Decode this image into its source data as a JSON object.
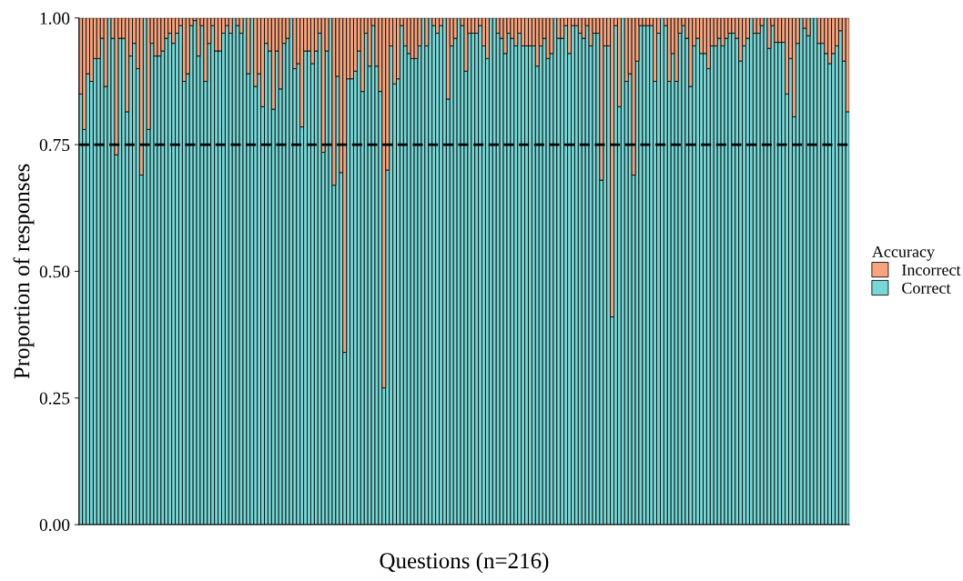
{
  "chart_data": {
    "type": "bar",
    "stacked": true,
    "xlabel": "Questions (n=216)",
    "ylabel": "Proportion of responses",
    "legend_title": "Accuracy",
    "legend": "right",
    "grid": false,
    "tick_labels": "y",
    "categories": [
      null,
      null,
      null,
      null,
      null,
      null,
      null,
      null,
      null,
      null,
      null,
      null,
      null,
      null,
      null,
      null,
      null,
      null,
      null,
      null,
      null,
      null,
      null,
      null,
      null,
      null,
      null,
      null,
      null,
      null,
      null,
      null,
      null,
      null,
      null,
      null,
      null,
      null,
      null,
      null,
      null,
      null,
      null,
      null,
      null,
      null,
      null,
      null,
      null,
      null,
      null,
      null,
      null,
      null,
      null,
      null,
      null,
      null,
      null,
      null,
      null,
      null,
      null,
      null,
      null,
      null,
      null,
      null,
      null,
      null,
      null,
      null,
      null,
      null,
      null,
      null,
      null,
      null,
      null,
      null,
      null,
      null,
      null,
      null,
      null,
      null,
      null,
      null,
      null,
      null,
      null,
      null,
      null,
      null,
      null,
      null,
      null,
      null,
      null,
      null,
      null,
      null,
      null,
      null,
      null,
      null,
      null,
      null,
      null,
      null,
      null,
      null,
      null,
      null,
      null,
      null,
      null,
      null,
      null,
      null,
      null,
      null,
      null,
      null,
      null,
      null,
      null,
      null,
      null,
      null,
      null,
      null,
      null,
      null,
      null,
      null,
      null,
      null,
      null,
      null,
      null,
      null,
      null,
      null,
      null,
      null,
      null,
      null,
      null,
      null,
      null,
      null,
      null,
      null,
      null,
      null,
      null,
      null,
      null,
      null,
      null,
      null,
      null,
      null,
      null,
      null,
      null,
      null,
      null,
      null,
      null,
      null,
      null,
      null,
      null,
      null,
      null,
      null,
      null,
      null,
      null,
      null,
      null,
      null,
      null,
      null,
      null,
      null,
      null,
      null,
      null,
      null,
      null,
      null,
      null,
      null,
      null,
      null,
      null,
      null,
      null,
      null,
      null,
      null,
      null,
      null,
      null,
      null,
      null,
      null,
      null,
      null,
      null,
      null,
      null,
      null
    ],
    "ylim": [
      0,
      1
    ],
    "yticks": [
      {
        "value": 0,
        "label": "0.00"
      },
      {
        "value": 0.25,
        "label": "0.25"
      },
      {
        "value": 0.5,
        "label": "0.50"
      },
      {
        "value": 0.75,
        "label": "0.75"
      },
      {
        "value": 1,
        "label": "1.00"
      }
    ],
    "ref_lines": [
      {
        "axis": "y",
        "value": 0.75,
        "color": "#000000",
        "line_style": "dashed"
      }
    ],
    "series": [
      {
        "name": "Correct",
        "color": "#76d7d6",
        "values": [
          0.85,
          0.78,
          0.89,
          0.875,
          0.92,
          0.92,
          0.96,
          0.865,
          1.0,
          0.96,
          0.73,
          0.96,
          0.96,
          0.815,
          0.925,
          0.95,
          0.9,
          0.69,
          1.0,
          0.78,
          0.95,
          0.925,
          0.925,
          0.935,
          0.96,
          0.97,
          0.95,
          0.97,
          0.985,
          0.875,
          0.89,
          0.985,
          0.995,
          0.925,
          0.985,
          0.875,
          0.95,
          0.985,
          0.935,
          0.935,
          0.97,
          0.985,
          0.97,
          1.0,
          0.985,
          0.97,
          1.0,
          0.89,
          1.0,
          0.865,
          0.89,
          0.825,
          0.95,
          0.935,
          0.82,
          0.935,
          0.86,
          0.95,
          0.96,
          1.0,
          0.9,
          0.91,
          0.785,
          0.935,
          0.935,
          0.91,
          0.935,
          0.97,
          0.735,
          0.935,
          1.0,
          0.67,
          0.885,
          0.695,
          0.34,
          0.88,
          0.88,
          0.895,
          0.935,
          0.855,
          0.97,
          0.905,
          0.985,
          0.905,
          0.855,
          0.27,
          0.7,
          0.945,
          0.87,
          0.88,
          0.985,
          0.945,
          0.93,
          0.92,
          0.92,
          0.945,
          1.0,
          0.945,
          1.0,
          0.985,
          0.97,
          0.985,
          1.0,
          0.84,
          0.945,
          0.96,
          1.0,
          0.985,
          0.895,
          0.97,
          0.97,
          0.97,
          0.985,
          0.945,
          0.92,
          1.0,
          1.0,
          0.97,
          0.96,
          0.93,
          0.97,
          0.96,
          0.945,
          0.97,
          0.945,
          0.945,
          0.945,
          0.945,
          0.905,
          0.945,
          0.96,
          0.92,
          0.93,
          1.0,
          0.96,
          0.96,
          0.985,
          0.93,
          0.985,
          0.985,
          0.97,
          0.96,
          0.985,
          0.945,
          0.97,
          0.97,
          0.68,
          0.945,
          0.945,
          0.41,
          0.985,
          0.825,
          1.0,
          0.875,
          0.89,
          0.69,
          0.915,
          0.985,
          0.985,
          0.985,
          0.985,
          0.875,
          0.97,
          1.0,
          0.985,
          0.875,
          0.93,
          0.875,
          0.97,
          0.985,
          0.96,
          0.865,
          0.945,
          0.96,
          0.93,
          0.93,
          0.9,
          0.945,
          0.945,
          0.96,
          0.945,
          0.96,
          0.97,
          0.97,
          0.96,
          0.915,
          0.945,
          0.96,
          1.0,
          0.97,
          0.97,
          0.985,
          1.0,
          0.94,
          0.985,
          0.952,
          0.952,
          0.952,
          0.85,
          0.92,
          0.805,
          0.95,
          1.0,
          0.98,
          0.965,
          1.0,
          1.0,
          0.95,
          0.95,
          0.93,
          0.91,
          0.93,
          0.945,
          0.975,
          0.915,
          0.815
        ]
      },
      {
        "name": "Incorrect",
        "color": "#f6a47e",
        "values": [
          0.15,
          0.22,
          0.11,
          0.125,
          0.08,
          0.08,
          0.04,
          0.135,
          0,
          0.04,
          0.27,
          0.04,
          0.04,
          0.185,
          0.075,
          0.05,
          0.1,
          0.31,
          0,
          0.22,
          0.05,
          0.075,
          0.075,
          0.065,
          0.04,
          0.03,
          0.05,
          0.03,
          0.015,
          0.125,
          0.11,
          0.015,
          0.005,
          0.075,
          0.015,
          0.125,
          0.05,
          0.015,
          0.065,
          0.065,
          0.03,
          0.015,
          0.03,
          0,
          0.015,
          0.03,
          0,
          0.11,
          0,
          0.135,
          0.11,
          0.175,
          0.05,
          0.065,
          0.18,
          0.065,
          0.14,
          0.05,
          0.04,
          0,
          0.1,
          0.09,
          0.215,
          0.065,
          0.065,
          0.09,
          0.065,
          0.03,
          0.265,
          0.065,
          0,
          0.33,
          0.115,
          0.305,
          0.66,
          0.12,
          0.12,
          0.105,
          0.065,
          0.145,
          0.03,
          0.095,
          0.015,
          0.095,
          0.145,
          0.73,
          0.3,
          0.055,
          0.13,
          0.12,
          0.015,
          0.055,
          0.07,
          0.08,
          0.08,
          0.055,
          0,
          0.055,
          0,
          0.015,
          0.03,
          0.015,
          0,
          0.16,
          0.055,
          0.04,
          0,
          0.015,
          0.105,
          0.03,
          0.03,
          0.03,
          0.015,
          0.055,
          0.08,
          0,
          0,
          0.03,
          0.04,
          0.07,
          0.03,
          0.04,
          0.055,
          0.03,
          0.055,
          0.055,
          0.055,
          0.055,
          0.095,
          0.055,
          0.04,
          0.08,
          0.07,
          0,
          0.04,
          0.04,
          0.015,
          0.07,
          0.015,
          0.015,
          0.03,
          0.04,
          0.015,
          0.055,
          0.03,
          0.03,
          0.32,
          0.055,
          0.055,
          0.59,
          0.015,
          0.175,
          0,
          0.125,
          0.11,
          0.31,
          0.085,
          0.015,
          0.015,
          0.015,
          0.015,
          0.125,
          0.03,
          0,
          0.015,
          0.125,
          0.07,
          0.125,
          0.03,
          0.015,
          0.04,
          0.135,
          0.055,
          0.04,
          0.07,
          0.07,
          0.1,
          0.055,
          0.055,
          0.04,
          0.055,
          0.04,
          0.03,
          0.03,
          0.04,
          0.085,
          0.055,
          0.04,
          0,
          0.03,
          0.03,
          0.015,
          0,
          0.06,
          0.015,
          0.048,
          0.048,
          0.048,
          0.15,
          0.08,
          0.195,
          0.05,
          0,
          0.02,
          0.035,
          0,
          0,
          0.05,
          0.05,
          0.07,
          0.09,
          0.07,
          0.055,
          0.025,
          0.085,
          0.185
        ]
      }
    ]
  }
}
